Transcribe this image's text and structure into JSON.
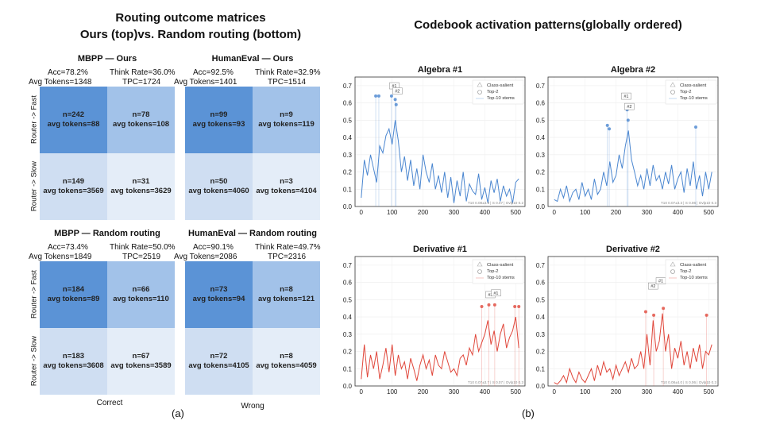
{
  "left_title": [
    "Routing outcome matrices",
    "Ours (top)vs. Random routing (bottom)"
  ],
  "right_title": "Codebook activation patterns(globally ordered)",
  "labels": {
    "row_fast": "Router -> Fast",
    "row_slow": "Router -> Slow",
    "col_correct": "Correct",
    "col_wrong": "Wrong",
    "sub_a": "(a)",
    "sub_b": "(b)"
  },
  "colors": {
    "dark": "#5b93d6",
    "mid": "#a2c2e9",
    "light": "#cfdef2",
    "lightest": "#e4edf8",
    "blue_line": "#4a86d0",
    "red_line": "#e0463a"
  },
  "matrices": [
    {
      "title": "MBPP — Ours",
      "acc": "Acc=78.2%",
      "think": "Think Rate=36.0%",
      "avg": "Avg Tokens=1348",
      "tpc": "TPC=1724",
      "cells": [
        {
          "n": "n=242",
          "t": "avg tokens=88",
          "shade": "dark"
        },
        {
          "n": "n=78",
          "t": "avg tokens=108",
          "shade": "mid"
        },
        {
          "n": "n=149",
          "t": "avg tokens=3569",
          "shade": "light"
        },
        {
          "n": "n=31",
          "t": "avg tokens=3629",
          "shade": "lightest"
        }
      ]
    },
    {
      "title": "HumanEval — Ours",
      "acc": "Acc=92.5%",
      "think": "Think Rate=32.9%",
      "avg": "Avg Tokens=1401",
      "tpc": "TPC=1514",
      "cells": [
        {
          "n": "n=99",
          "t": "avg tokens=93",
          "shade": "dark"
        },
        {
          "n": "n=9",
          "t": "avg tokens=119",
          "shade": "mid"
        },
        {
          "n": "n=50",
          "t": "avg tokens=4060",
          "shade": "light"
        },
        {
          "n": "n=3",
          "t": "avg tokens=4104",
          "shade": "lightest"
        }
      ]
    },
    {
      "title": "MBPP — Random routing",
      "acc": "Acc=73.4%",
      "think": "Think Rate=50.0%",
      "avg": "Avg Tokens=1849",
      "tpc": "TPC=2519",
      "cells": [
        {
          "n": "n=184",
          "t": "avg tokens=89",
          "shade": "dark"
        },
        {
          "n": "n=66",
          "t": "avg tokens=110",
          "shade": "mid"
        },
        {
          "n": "n=183",
          "t": "avg tokens=3608",
          "shade": "light"
        },
        {
          "n": "n=67",
          "t": "avg tokens=3589",
          "shade": "lightest"
        }
      ]
    },
    {
      "title": "HumanEval — Random routing",
      "acc": "Acc=90.1%",
      "think": "Think Rate=49.7%",
      "avg": "Avg Tokens=2086",
      "tpc": "TPC=2316",
      "cells": [
        {
          "n": "n=73",
          "t": "avg tokens=94",
          "shade": "dark"
        },
        {
          "n": "n=8",
          "t": "avg tokens=121",
          "shade": "mid"
        },
        {
          "n": "n=72",
          "t": "avg tokens=4105",
          "shade": "light"
        },
        {
          "n": "n=8",
          "t": "avg tokens=4059",
          "shade": "lightest"
        }
      ]
    }
  ],
  "chart_data": [
    {
      "type": "line",
      "title": "Algebra #1",
      "color": "blue",
      "xlim": [
        -20,
        530
      ],
      "ylim": [
        0,
        0.75
      ],
      "xticks": [
        0,
        100,
        200,
        300,
        400,
        500
      ],
      "yticks": [
        0.0,
        0.1,
        0.2,
        0.3,
        0.4,
        0.5,
        0.6,
        0.7
      ],
      "legend": [
        "Class-salient",
        "Top-2",
        "Top-10 stems"
      ],
      "legend_position": "top-right",
      "footer": "T10 0.08±3.9 | S 0.07 | Ovlp10 0.2",
      "series_x": [
        0,
        10,
        20,
        30,
        40,
        50,
        60,
        70,
        80,
        90,
        100,
        110,
        120,
        130,
        140,
        150,
        160,
        170,
        180,
        190,
        200,
        210,
        220,
        230,
        240,
        250,
        260,
        270,
        280,
        290,
        300,
        310,
        320,
        330,
        340,
        350,
        360,
        370,
        380,
        390,
        400,
        410,
        420,
        430,
        440,
        450,
        460,
        470,
        480,
        490,
        500,
        510
      ],
      "series_y": [
        0.05,
        0.27,
        0.18,
        0.3,
        0.22,
        0.14,
        0.35,
        0.31,
        0.41,
        0.45,
        0.36,
        0.5,
        0.38,
        0.2,
        0.29,
        0.15,
        0.27,
        0.12,
        0.22,
        0.1,
        0.3,
        0.2,
        0.14,
        0.25,
        0.1,
        0.18,
        0.08,
        0.2,
        0.05,
        0.17,
        0.02,
        0.15,
        0.06,
        0.2,
        0.03,
        0.13,
        0.09,
        0.07,
        0.19,
        0.04,
        0.11,
        0.02,
        0.15,
        0.08,
        0.16,
        0.03,
        0.12,
        0.06,
        0.1,
        0.02,
        0.14,
        0.16
      ],
      "markers": [
        {
          "x": 47,
          "y": 0.64
        },
        {
          "x": 57,
          "y": 0.64
        },
        {
          "x": 98,
          "y": 0.64
        },
        {
          "x": 110,
          "y": 0.62
        },
        {
          "x": 113,
          "y": 0.59
        }
      ],
      "tags": [
        {
          "x": 107,
          "y": 0.69,
          "label": "#1"
        },
        {
          "x": 117,
          "y": 0.66,
          "label": "#2"
        }
      ]
    },
    {
      "type": "line",
      "title": "Algebra #2",
      "color": "blue",
      "xlim": [
        -20,
        530
      ],
      "ylim": [
        0,
        0.75
      ],
      "xticks": [
        0,
        100,
        200,
        300,
        400,
        500
      ],
      "yticks": [
        0.0,
        0.1,
        0.2,
        0.3,
        0.4,
        0.5,
        0.6,
        0.7
      ],
      "legend": [
        "Class-salient",
        "Top-2",
        "Top-10 stems"
      ],
      "legend_position": "top-right",
      "footer": "T10 0.07±3.3 | S 0.06 | Ovlp10 0.3",
      "series_x": [
        0,
        10,
        20,
        30,
        40,
        50,
        60,
        70,
        80,
        90,
        100,
        110,
        120,
        130,
        140,
        150,
        160,
        170,
        180,
        190,
        200,
        210,
        220,
        230,
        240,
        250,
        260,
        270,
        280,
        290,
        300,
        310,
        320,
        330,
        340,
        350,
        360,
        370,
        380,
        390,
        400,
        410,
        420,
        430,
        440,
        450,
        460,
        470,
        480,
        490,
        500,
        510
      ],
      "series_y": [
        0.04,
        0.03,
        0.1,
        0.05,
        0.12,
        0.03,
        0.08,
        0.1,
        0.04,
        0.14,
        0.06,
        0.1,
        0.04,
        0.16,
        0.07,
        0.1,
        0.2,
        0.12,
        0.26,
        0.14,
        0.18,
        0.3,
        0.22,
        0.35,
        0.44,
        0.27,
        0.2,
        0.12,
        0.18,
        0.1,
        0.22,
        0.12,
        0.24,
        0.15,
        0.18,
        0.1,
        0.2,
        0.13,
        0.24,
        0.1,
        0.16,
        0.2,
        0.08,
        0.22,
        0.12,
        0.26,
        0.1,
        0.18,
        0.06,
        0.2,
        0.1,
        0.2
      ],
      "markers": [
        {
          "x": 172,
          "y": 0.47
        },
        {
          "x": 178,
          "y": 0.45
        },
        {
          "x": 236,
          "y": 0.56
        },
        {
          "x": 239,
          "y": 0.5
        },
        {
          "x": 458,
          "y": 0.46
        }
      ],
      "tags": [
        {
          "x": 233,
          "y": 0.63,
          "label": "#1"
        },
        {
          "x": 243,
          "y": 0.57,
          "label": "#2"
        }
      ]
    },
    {
      "type": "line",
      "title": "Derivative #1",
      "color": "red",
      "xlim": [
        -20,
        530
      ],
      "ylim": [
        0,
        0.75
      ],
      "xticks": [
        0,
        100,
        200,
        300,
        400,
        500
      ],
      "yticks": [
        0.0,
        0.1,
        0.2,
        0.3,
        0.4,
        0.5,
        0.6,
        0.7
      ],
      "legend": [
        "Class-salient",
        "Top-2",
        "Top-10 stems"
      ],
      "legend_position": "top-right",
      "footer": "T10 0.07±3.7 | S 0.07 | Ovlp10 0.3",
      "series_x": [
        0,
        10,
        20,
        30,
        40,
        50,
        60,
        70,
        80,
        90,
        100,
        110,
        120,
        130,
        140,
        150,
        160,
        170,
        180,
        190,
        200,
        210,
        220,
        230,
        240,
        250,
        260,
        270,
        280,
        290,
        300,
        310,
        320,
        330,
        340,
        350,
        360,
        370,
        380,
        390,
        400,
        410,
        420,
        430,
        440,
        450,
        460,
        470,
        480,
        490,
        500,
        510
      ],
      "series_y": [
        0.04,
        0.24,
        0.05,
        0.18,
        0.1,
        0.2,
        0.04,
        0.12,
        0.22,
        0.08,
        0.24,
        0.06,
        0.18,
        0.1,
        0.14,
        0.04,
        0.16,
        0.1,
        0.03,
        0.12,
        0.18,
        0.1,
        0.15,
        0.06,
        0.18,
        0.12,
        0.1,
        0.2,
        0.14,
        0.08,
        0.1,
        0.06,
        0.16,
        0.18,
        0.12,
        0.22,
        0.18,
        0.3,
        0.2,
        0.25,
        0.3,
        0.38,
        0.24,
        0.32,
        0.2,
        0.3,
        0.36,
        0.22,
        0.28,
        0.32,
        0.4,
        0.22
      ],
      "markers": [
        {
          "x": 390,
          "y": 0.46
        },
        {
          "x": 413,
          "y": 0.47
        },
        {
          "x": 432,
          "y": 0.47
        },
        {
          "x": 497,
          "y": 0.46
        },
        {
          "x": 510,
          "y": 0.46
        }
      ],
      "tags": [
        {
          "x": 418,
          "y": 0.52,
          "label": "#2"
        },
        {
          "x": 436,
          "y": 0.53,
          "label": "#1"
        }
      ]
    },
    {
      "type": "line",
      "title": "Derivative #2",
      "color": "red",
      "xlim": [
        -20,
        530
      ],
      "ylim": [
        0,
        0.75
      ],
      "xticks": [
        0,
        100,
        200,
        300,
        400,
        500
      ],
      "yticks": [
        0.0,
        0.1,
        0.2,
        0.3,
        0.4,
        0.5,
        0.6,
        0.7
      ],
      "legend": [
        "Class-salient",
        "Top-2",
        "Top-10 stems"
      ],
      "legend_position": "top-right",
      "footer": "T10 0.08±4.0 | S 0.06 | Ovlp10 0.3",
      "series_x": [
        0,
        10,
        20,
        30,
        40,
        50,
        60,
        70,
        80,
        90,
        100,
        110,
        120,
        130,
        140,
        150,
        160,
        170,
        180,
        190,
        200,
        210,
        220,
        230,
        240,
        250,
        260,
        270,
        280,
        290,
        300,
        310,
        320,
        330,
        340,
        350,
        360,
        370,
        380,
        390,
        400,
        410,
        420,
        430,
        440,
        450,
        460,
        470,
        480,
        490,
        500,
        510
      ],
      "series_y": [
        0.02,
        0.01,
        0.03,
        0.06,
        0.02,
        0.1,
        0.05,
        0.02,
        0.08,
        0.04,
        0.02,
        0.06,
        0.1,
        0.03,
        0.12,
        0.06,
        0.14,
        0.08,
        0.1,
        0.04,
        0.12,
        0.06,
        0.1,
        0.14,
        0.08,
        0.16,
        0.1,
        0.12,
        0.2,
        0.1,
        0.3,
        0.12,
        0.38,
        0.2,
        0.26,
        0.42,
        0.2,
        0.3,
        0.1,
        0.22,
        0.16,
        0.26,
        0.12,
        0.2,
        0.1,
        0.22,
        0.14,
        0.24,
        0.1,
        0.2,
        0.18,
        0.24
      ],
      "markers": [
        {
          "x": 296,
          "y": 0.43
        },
        {
          "x": 322,
          "y": 0.41
        },
        {
          "x": 353,
          "y": 0.45
        },
        {
          "x": 493,
          "y": 0.41
        }
      ],
      "tags": [
        {
          "x": 320,
          "y": 0.57,
          "label": "#2"
        },
        {
          "x": 345,
          "y": 0.6,
          "label": "#1"
        }
      ]
    }
  ]
}
